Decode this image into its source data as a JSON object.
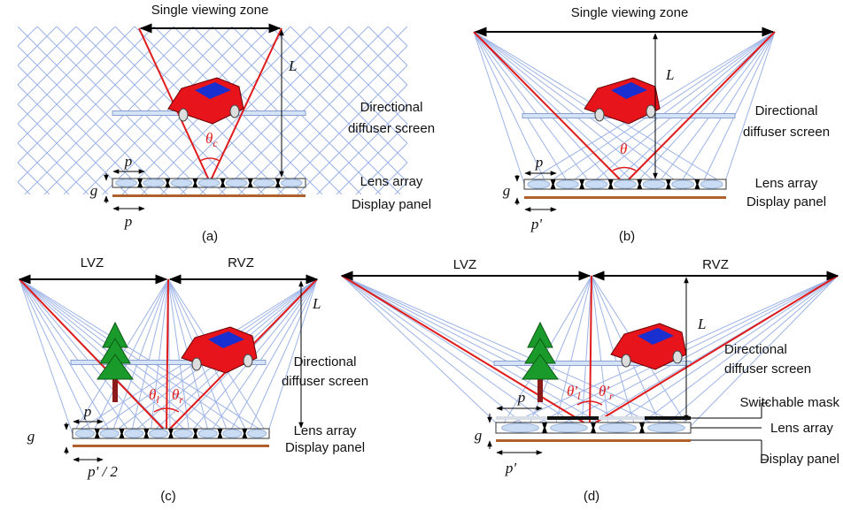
{
  "panels": [
    {
      "label": "(a)",
      "zone": "Single viewing zone",
      "distance": "L",
      "screen": [
        "Directional",
        "diffuser screen"
      ],
      "angle": {
        "symbol": "θ",
        "subscript": "c"
      },
      "pitch_top": "p",
      "gap": "g",
      "pitch_bottom": "p",
      "lens": "Lens array",
      "display": "Display panel"
    },
    {
      "label": "(b)",
      "zone": "Single viewing zone",
      "distance": "L",
      "screen": [
        "Directional",
        "diffuser screen"
      ],
      "angle": {
        "symbol": "θ"
      },
      "pitch_top": "p",
      "gap": "g",
      "pitch_bottom": "p'",
      "lens": "Lens array",
      "display": "Display panel"
    },
    {
      "label": "(c)",
      "zones": [
        "LVZ",
        "RVZ"
      ],
      "distance": "L",
      "screen": [
        "Directional",
        "diffuser screen"
      ],
      "angles": [
        {
          "symbol": "θ",
          "subscript": "l"
        },
        {
          "symbol": "θ",
          "subscript": "r"
        }
      ],
      "pitch_top": "p",
      "gap": "g",
      "pitch_bottom": "p' / 2",
      "lens": "Lens array",
      "display": "Display panel"
    },
    {
      "label": "(d)",
      "zones": [
        "LVZ",
        "RVZ"
      ],
      "distance": "L",
      "screen": [
        "Directional",
        "diffuser screen"
      ],
      "angles": [
        {
          "symbol": "θ'",
          "subscript": "l"
        },
        {
          "symbol": "θ'",
          "subscript": "r"
        }
      ],
      "pitch_top": "p",
      "gap": "g",
      "pitch_bottom": "p'",
      "mask": "Switchable mask",
      "lens": "Lens array",
      "display": "Display panel"
    }
  ]
}
